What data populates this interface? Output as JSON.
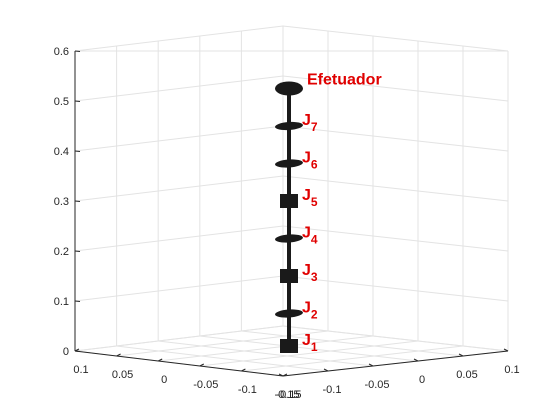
{
  "chart_data": {
    "type": "3d-line",
    "title": "",
    "xlabel": "",
    "ylabel": "",
    "zlabel": "",
    "zlim": [
      0,
      0.6
    ],
    "xlim": [
      -0.15,
      0.15
    ],
    "ylim": [
      -0.15,
      0.15
    ],
    "grid": true,
    "z_ticks": [
      "0",
      "0.1",
      "0.2",
      "0.3",
      "0.4",
      "0.5",
      "0.6"
    ],
    "left_axis_ticks": [
      "0.1",
      "0.05",
      "0",
      "-0.05",
      "-0.1",
      "-0.15"
    ],
    "right_axis_ticks": [
      "-0.15",
      "-0.1",
      "-0.05",
      "0",
      "0.05",
      "0.1"
    ],
    "link_color": "#1a1a1a",
    "label_color": "#e00000",
    "joints": [
      {
        "name": "J",
        "sub": "1",
        "z": 0.01,
        "shape": "box"
      },
      {
        "name": "J",
        "sub": "2",
        "z": 0.075,
        "shape": "disc"
      },
      {
        "name": "J",
        "sub": "3",
        "z": 0.15,
        "shape": "box"
      },
      {
        "name": "J",
        "sub": "4",
        "z": 0.225,
        "shape": "disc"
      },
      {
        "name": "J",
        "sub": "5",
        "z": 0.3,
        "shape": "box"
      },
      {
        "name": "J",
        "sub": "6",
        "z": 0.375,
        "shape": "disc"
      },
      {
        "name": "J",
        "sub": "7",
        "z": 0.45,
        "shape": "disc"
      }
    ],
    "end_effector": {
      "label": "Efetuador",
      "z": 0.525
    }
  }
}
